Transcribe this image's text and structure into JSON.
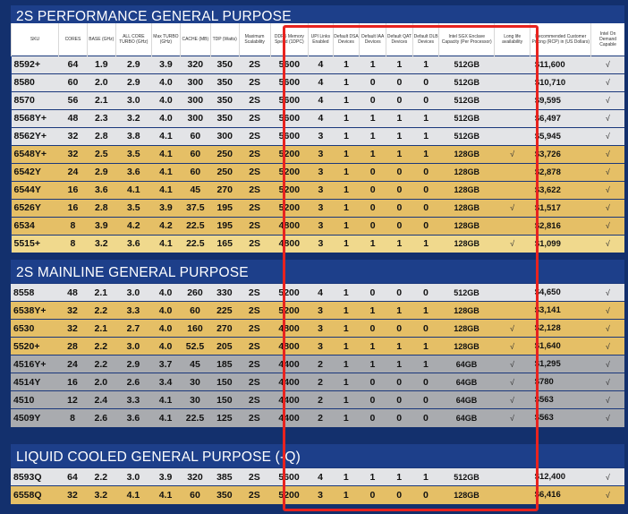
{
  "colors": {
    "background": "#13306d",
    "panel": "#1d3f8a",
    "row_grey": "#e3e4e7",
    "row_gold": "#e5bf66",
    "row_gold_light": "#f0d98d",
    "row_dark_grey": "#a9abaf",
    "highlight_border": "#e8231f"
  },
  "headers": [
    "SKU",
    "CORES",
    "BASE (GHz)",
    "ALL CORE TURBO (GHz)",
    "Max TURBO (GHz)",
    "CACHE (MB)",
    "TDP (Watts)",
    "Maximum Scalability",
    "DDR5 Memory Speed (1DPC)",
    "UPI Links Enabled",
    "Default DSA Devices",
    "Default IAA Devices",
    "Default QAT Devices",
    "Default DLB Devices",
    "Intel SGX Enclave Capacity (Per Processor)",
    "Long life availability",
    "Recommended Customer Pricing (RCP) in (US Dollars)",
    "Intel On Demand Capable"
  ],
  "sections": [
    {
      "title": "2S PERFORMANCE GENERAL PURPOSE",
      "rows": [
        {
          "style": "grey",
          "cells": [
            "8592+",
            "64",
            "1.9",
            "2.9",
            "3.9",
            "320",
            "350",
            "2S",
            "5600",
            "4",
            "1",
            "1",
            "1",
            "1",
            "512GB",
            "",
            "$11,600",
            "√"
          ]
        },
        {
          "style": "grey",
          "cells": [
            "8580",
            "60",
            "2.0",
            "2.9",
            "4.0",
            "300",
            "350",
            "2S",
            "5600",
            "4",
            "1",
            "0",
            "0",
            "0",
            "512GB",
            "",
            "$10,710",
            "√"
          ]
        },
        {
          "style": "grey",
          "cells": [
            "8570",
            "56",
            "2.1",
            "3.0",
            "4.0",
            "300",
            "350",
            "2S",
            "5600",
            "4",
            "1",
            "0",
            "0",
            "0",
            "512GB",
            "",
            "$9,595",
            "√"
          ]
        },
        {
          "style": "grey",
          "cells": [
            "8568Y+",
            "48",
            "2.3",
            "3.2",
            "4.0",
            "300",
            "350",
            "2S",
            "5600",
            "4",
            "1",
            "1",
            "1",
            "1",
            "512GB",
            "",
            "$6,497",
            "√"
          ]
        },
        {
          "style": "grey",
          "cells": [
            "8562Y+",
            "32",
            "2.8",
            "3.8",
            "4.1",
            "60",
            "300",
            "2S",
            "5600",
            "3",
            "1",
            "1",
            "1",
            "1",
            "512GB",
            "",
            "$5,945",
            "√"
          ]
        },
        {
          "style": "gold",
          "cells": [
            "6548Y+",
            "32",
            "2.5",
            "3.5",
            "4.1",
            "60",
            "250",
            "2S",
            "5200",
            "3",
            "1",
            "1",
            "1",
            "1",
            "128GB",
            "√",
            "$3,726",
            "√"
          ]
        },
        {
          "style": "gold",
          "cells": [
            "6542Y",
            "24",
            "2.9",
            "3.6",
            "4.1",
            "60",
            "250",
            "2S",
            "5200",
            "3",
            "1",
            "0",
            "0",
            "0",
            "128GB",
            "",
            "$2,878",
            "√"
          ]
        },
        {
          "style": "gold",
          "cells": [
            "6544Y",
            "16",
            "3.6",
            "4.1",
            "4.1",
            "45",
            "270",
            "2S",
            "5200",
            "3",
            "1",
            "0",
            "0",
            "0",
            "128GB",
            "",
            "$3,622",
            "√"
          ]
        },
        {
          "style": "gold",
          "cells": [
            "6526Y",
            "16",
            "2.8",
            "3.5",
            "3.9",
            "37.5",
            "195",
            "2S",
            "5200",
            "3",
            "1",
            "0",
            "0",
            "0",
            "128GB",
            "√",
            "$1,517",
            "√"
          ]
        },
        {
          "style": "gold",
          "cells": [
            "6534",
            "8",
            "3.9",
            "4.2",
            "4.2",
            "22.5",
            "195",
            "2S",
            "4800",
            "3",
            "1",
            "0",
            "0",
            "0",
            "128GB",
            "",
            "$2,816",
            "√"
          ]
        },
        {
          "style": "gold-light",
          "cells": [
            "5515+",
            "8",
            "3.2",
            "3.6",
            "4.1",
            "22.5",
            "165",
            "2S",
            "4800",
            "3",
            "1",
            "1",
            "1",
            "1",
            "128GB",
            "√",
            "$1,099",
            "√"
          ]
        }
      ]
    },
    {
      "title": "2S MAINLINE GENERAL PURPOSE",
      "rows": [
        {
          "style": "grey",
          "cells": [
            "8558",
            "48",
            "2.1",
            "3.0",
            "4.0",
            "260",
            "330",
            "2S",
            "5200",
            "4",
            "1",
            "0",
            "0",
            "0",
            "512GB",
            "",
            "$4,650",
            "√"
          ]
        },
        {
          "style": "gold",
          "cells": [
            "6538Y+",
            "32",
            "2.2",
            "3.3",
            "4.0",
            "60",
            "225",
            "2S",
            "5200",
            "3",
            "1",
            "1",
            "1",
            "1",
            "128GB",
            "",
            "$3,141",
            "√"
          ]
        },
        {
          "style": "gold",
          "cells": [
            "6530",
            "32",
            "2.1",
            "2.7",
            "4.0",
            "160",
            "270",
            "2S",
            "4800",
            "3",
            "1",
            "0",
            "0",
            "0",
            "128GB",
            "√",
            "$2,128",
            "√"
          ]
        },
        {
          "style": "gold",
          "cells": [
            "5520+",
            "28",
            "2.2",
            "3.0",
            "4.0",
            "52.5",
            "205",
            "2S",
            "4800",
            "3",
            "1",
            "1",
            "1",
            "1",
            "128GB",
            "√",
            "$1,640",
            "√"
          ]
        },
        {
          "style": "dgrey",
          "cells": [
            "4516Y+",
            "24",
            "2.2",
            "2.9",
            "3.7",
            "45",
            "185",
            "2S",
            "4400",
            "2",
            "1",
            "1",
            "1",
            "1",
            "64GB",
            "√",
            "$1,295",
            "√"
          ]
        },
        {
          "style": "dgrey",
          "cells": [
            "4514Y",
            "16",
            "2.0",
            "2.6",
            "3.4",
            "30",
            "150",
            "2S",
            "4400",
            "2",
            "1",
            "0",
            "0",
            "0",
            "64GB",
            "√",
            "$780",
            "√"
          ]
        },
        {
          "style": "dgrey",
          "cells": [
            "4510",
            "12",
            "2.4",
            "3.3",
            "4.1",
            "30",
            "150",
            "2S",
            "4400",
            "2",
            "1",
            "0",
            "0",
            "0",
            "64GB",
            "√",
            "$563",
            "√"
          ]
        },
        {
          "style": "dgrey",
          "cells": [
            "4509Y",
            "8",
            "2.6",
            "3.6",
            "4.1",
            "22.5",
            "125",
            "2S",
            "4400",
            "2",
            "1",
            "0",
            "0",
            "0",
            "64GB",
            "√",
            "$563",
            "√"
          ]
        }
      ]
    },
    {
      "title": "LIQUID COOLED GENERAL PURPOSE (-Q)",
      "rows": [
        {
          "style": "grey",
          "cells": [
            "8593Q",
            "64",
            "2.2",
            "3.0",
            "3.9",
            "320",
            "385",
            "2S",
            "5600",
            "4",
            "1",
            "1",
            "1",
            "1",
            "512GB",
            "",
            "$12,400",
            "√"
          ]
        },
        {
          "style": "gold",
          "cells": [
            "6558Q",
            "32",
            "3.2",
            "4.1",
            "4.1",
            "60",
            "350",
            "2S",
            "5200",
            "3",
            "1",
            "0",
            "0",
            "0",
            "128GB",
            "",
            "$6,416",
            "√"
          ]
        }
      ]
    }
  ]
}
